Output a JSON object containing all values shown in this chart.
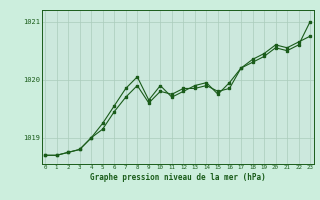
{
  "title": "Graphe pression niveau de la mer (hPa)",
  "bg_color": "#cceedd",
  "plot_bg_color": "#cce8dd",
  "line_color": "#1a5c1a",
  "grid_color": "#aaccbb",
  "hours": [
    0,
    1,
    2,
    3,
    4,
    5,
    6,
    7,
    8,
    9,
    10,
    11,
    12,
    13,
    14,
    15,
    16,
    17,
    18,
    19,
    20,
    21,
    22,
    23
  ],
  "series1": [
    1018.7,
    1018.7,
    1018.75,
    1018.8,
    1019.0,
    1019.15,
    1019.45,
    1019.7,
    1019.9,
    1019.6,
    1019.8,
    1019.75,
    1019.85,
    1019.85,
    1019.9,
    1019.8,
    1019.85,
    1020.2,
    1020.3,
    1020.4,
    1020.55,
    1020.5,
    1020.6,
    1021.0
  ],
  "series2": [
    1018.7,
    1018.7,
    1018.75,
    1018.8,
    1019.0,
    1019.25,
    1019.55,
    1019.85,
    1020.05,
    1019.65,
    1019.9,
    1019.7,
    1019.8,
    1019.9,
    1019.95,
    1019.75,
    1019.95,
    1020.2,
    1020.35,
    1020.45,
    1020.6,
    1020.55,
    1020.65,
    1020.75
  ],
  "ylim": [
    1018.55,
    1021.2
  ],
  "yticks": [
    1019,
    1020,
    1021
  ],
  "xlim": [
    -0.3,
    23.3
  ]
}
